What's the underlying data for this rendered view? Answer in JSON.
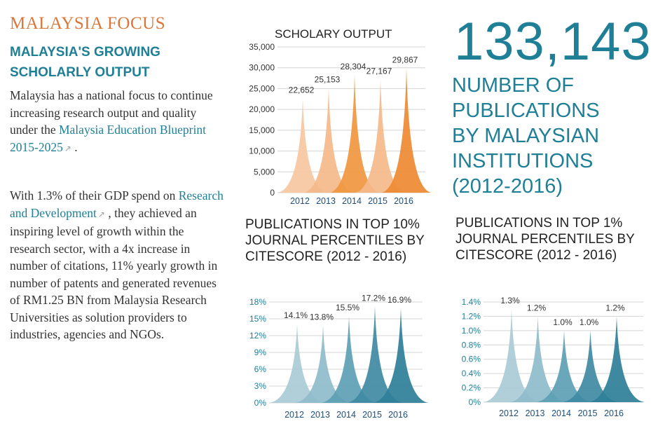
{
  "sidebar": {
    "section_label": "MALAYSIA FOCUS",
    "heading_line1": "MALAYSIA'S GROWING",
    "heading_line2": "SCHOLARLY OUTPUT",
    "p1_text": "Malaysia has a national focus to continue increasing research output and quality under the",
    "p1_link": "Malaysia Education Blueprint 2015-2025",
    "p1_end": ".",
    "p2_text1": "With 1.3% of their GDP spend on",
    "p2_link": "Research and Development",
    "p2_text2": ", they achieved an inspiring level of growth within the research sector, with a 4x increase in number of citations, 11% yearly growth in number of patents and generated revenues of RM1.25 BN from Malaysia Research Universities as solution providers to industries, agencies and NGOs.",
    "link_icon": "external-link-icon"
  },
  "highlight": {
    "number": "133,143",
    "caption_lines": [
      "NUMBER OF",
      "PUBLICATIONS",
      "BY MALAYSIAN",
      "INSTITUTIONS",
      "(2012-2016)"
    ]
  },
  "chart_data": [
    {
      "type": "area",
      "title": "SCHOLARY OUTPUT",
      "categories": [
        "2012",
        "2013",
        "2014",
        "2015",
        "2016"
      ],
      "values": [
        22652,
        25153,
        28304,
        27167,
        29867
      ],
      "value_labels": [
        "22,652",
        "25,153",
        "28,304",
        "27,167",
        "29,867"
      ],
      "ylim": [
        0,
        35000
      ],
      "yticks": [
        0,
        5000,
        10000,
        15000,
        20000,
        25000,
        30000,
        35000
      ],
      "ytick_labels": [
        "0",
        "5,000",
        "10,000",
        "15,000",
        "20,000",
        "25,000",
        "30,000",
        "35,000"
      ],
      "grid": true,
      "colors": [
        "#f6c7a0",
        "#f4b98a",
        "#f0973f",
        "#f4b98a",
        "#ee8a33"
      ]
    },
    {
      "type": "area",
      "title": "PUBLICATIONS IN TOP 10% JOURNAL PERCENTILES BY CITESCORE (2012 - 2016)",
      "categories": [
        "2012",
        "2013",
        "2014",
        "2015",
        "2016"
      ],
      "values": [
        14.1,
        13.8,
        15.5,
        17.2,
        16.9
      ],
      "value_labels": [
        "14.1%",
        "13.8%",
        "15.5%",
        "17.2%",
        "16.9%"
      ],
      "ylim": [
        0,
        18
      ],
      "yticks": [
        0,
        3,
        6,
        9,
        12,
        15,
        18
      ],
      "ytick_labels": [
        "0%",
        "3%",
        "6%",
        "9%",
        "12%",
        "15%",
        "18%"
      ],
      "grid": true,
      "colors": [
        "#a9cbd6",
        "#8fbccb",
        "#5d9fb4",
        "#3f8aa3",
        "#2e7f98"
      ]
    },
    {
      "type": "area",
      "title": "PUBLICATIONS IN TOP 1% JOURNAL PERCENTILES BY CITESCORE (2012 - 2016)",
      "categories": [
        "2012",
        "2013",
        "2014",
        "2015",
        "2016"
      ],
      "values": [
        1.3,
        1.2,
        1.0,
        1.0,
        1.2
      ],
      "value_labels": [
        "1.3%",
        "1.2%",
        "1.0%",
        "1.0%",
        "1.2%"
      ],
      "ylim": [
        0,
        1.4
      ],
      "yticks": [
        0,
        0.2,
        0.4,
        0.6,
        0.8,
        1.0,
        1.2,
        1.4
      ],
      "ytick_labels": [
        "0%",
        "0.2%",
        "0.4%",
        "0.6%",
        "0.8%",
        "1.0%",
        "1.2%",
        "1.4%"
      ],
      "grid": true,
      "colors": [
        "#a9cbd6",
        "#8fbccb",
        "#5d9fb4",
        "#3f8aa3",
        "#2e7f98"
      ]
    }
  ]
}
